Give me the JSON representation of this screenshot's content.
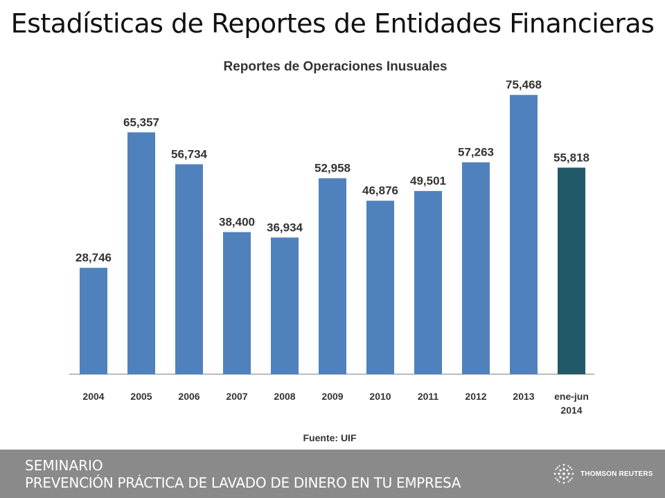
{
  "slide": {
    "title": "Estadísticas de Reportes de Entidades Financieras"
  },
  "chart_data": {
    "type": "bar",
    "title": "Reportes de Operaciones Inusuales",
    "categories": [
      [
        "2004"
      ],
      [
        "2005"
      ],
      [
        "2006"
      ],
      [
        "2007"
      ],
      [
        "2008"
      ],
      [
        "2009"
      ],
      [
        "2010"
      ],
      [
        "2011"
      ],
      [
        "2012"
      ],
      [
        "2013"
      ],
      [
        "ene-jun",
        "2014"
      ]
    ],
    "values": [
      28746,
      65357,
      56734,
      38400,
      36934,
      52958,
      46876,
      49501,
      57263,
      75468,
      55818
    ],
    "value_labels": [
      "28,746",
      "65,357",
      "56,734",
      "38,400",
      "36,934",
      "52,958",
      "46,876",
      "49,501",
      "57,263",
      "75,468",
      "55,818"
    ],
    "bar_colors": [
      "#4f81bd",
      "#4f81bd",
      "#4f81bd",
      "#4f81bd",
      "#4f81bd",
      "#4f81bd",
      "#4f81bd",
      "#4f81bd",
      "#4f81bd",
      "#4f81bd",
      "#215968"
    ],
    "source": "Fuente: UIF",
    "ylim": [
      0,
      80000
    ],
    "grid": false,
    "xlabel": "",
    "ylabel": ""
  },
  "footer": {
    "line1": "SEMINARIO",
    "line2": "PREVENCIÓN PRÁCTICA DE LAVADO DE DINERO EN TU EMPRESA",
    "brand": "THOMSON REUTERS",
    "brand_icon": "thomson-reuters-logo-icon"
  },
  "colors": {
    "footer_bg": "#8a8a8a",
    "axis": "#a6a6a6",
    "text": "#111111"
  }
}
